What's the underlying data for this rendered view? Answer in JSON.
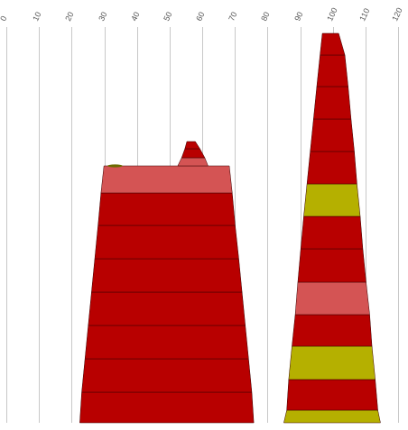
{
  "chart_data": {
    "type": "bar",
    "orientation": "stacked-trapezoid-towers",
    "title": "",
    "xlabel": "",
    "ylabel": "",
    "xlim": [
      0,
      120
    ],
    "x_ticks": [
      0,
      10,
      20,
      30,
      40,
      50,
      60,
      70,
      80,
      90,
      100,
      110,
      120
    ],
    "x_tick_labels": [
      "0",
      "10",
      "20",
      "30",
      "40",
      "50",
      "60",
      "70",
      "80",
      "90",
      "100",
      "110",
      "120"
    ],
    "grid": true,
    "legend": "none",
    "colors": {
      "dark_red": "#b80000",
      "light_red": "#d45454",
      "olive": "#b5b000",
      "dark_olive": "#6b6b00",
      "outline": "#3a0000",
      "grid": "#c8c8c8"
    },
    "groups": [
      {
        "center": 50,
        "segments": [
          {
            "color": "dark_red",
            "x_left": [
              22.5,
              23.1
            ],
            "x_right": [
              75.8,
              75.2
            ]
          },
          {
            "color": "dark_red",
            "x_left": [
              23.1,
              24.1
            ],
            "x_right": [
              75.2,
              74.2
            ]
          },
          {
            "color": "dark_red",
            "x_left": [
              24.1,
              25.1
            ],
            "x_right": [
              74.2,
              73.2
            ]
          },
          {
            "color": "dark_red",
            "x_left": [
              25.1,
              26.1
            ],
            "x_right": [
              73.2,
              72.2
            ]
          },
          {
            "color": "dark_red",
            "x_left": [
              26.1,
              27.1
            ],
            "x_right": [
              72.2,
              71.2
            ]
          },
          {
            "color": "dark_red",
            "x_left": [
              27.1,
              28.1
            ],
            "x_right": [
              71.2,
              70.1
            ]
          },
          {
            "color": "dark_red",
            "x_left": [
              28.1,
              29.0
            ],
            "x_right": [
              70.1,
              69.2
            ]
          },
          {
            "color": "light_red",
            "x_left": [
              29.0,
              29.9
            ],
            "x_right": [
              69.2,
              68.3
            ]
          },
          {
            "color": "dark_olive",
            "x_left": [
              31.0,
              35.6
            ],
            "x_right": [
              31.0,
              35.6
            ],
            "blip": true
          },
          {
            "color": "light_red",
            "x_left": [
              52.5,
              53.7
            ],
            "x_right": [
              61.8,
              60.8
            ]
          },
          {
            "color": "dark_red",
            "x_left": [
              53.7,
              54.7
            ],
            "x_right": [
              60.8,
              59.3
            ]
          },
          {
            "color": "dark_red",
            "x_left": [
              54.7,
              55.3
            ],
            "x_right": [
              59.3,
              57.9
            ]
          }
        ]
      },
      {
        "center": 100,
        "segments": [
          {
            "color": "olive",
            "x_left": [
              85.0,
              85.9
            ],
            "x_right": [
              114.6,
              113.8
            ]
          },
          {
            "color": "dark_red",
            "x_left": [
              85.9,
              86.5
            ],
            "x_right": [
              113.8,
              113.0
            ]
          },
          {
            "color": "olive",
            "x_left": [
              86.5,
              87.5
            ],
            "x_right": [
              113.0,
              112.0
            ]
          },
          {
            "color": "dark_red",
            "x_left": [
              87.5,
              88.5
            ],
            "x_right": [
              112.0,
              111.3
            ]
          },
          {
            "color": "light_red",
            "x_left": [
              88.5,
              89.3
            ],
            "x_right": [
              111.3,
              110.2
            ]
          },
          {
            "color": "dark_red",
            "x_left": [
              89.3,
              90.2
            ],
            "x_right": [
              110.2,
              109.2
            ]
          },
          {
            "color": "dark_red",
            "x_left": [
              90.2,
              91.1
            ],
            "x_right": [
              109.2,
              108.4
            ]
          },
          {
            "color": "olive",
            "x_left": [
              91.1,
              92.1
            ],
            "x_right": [
              108.4,
              107.4
            ]
          },
          {
            "color": "dark_red",
            "x_left": [
              92.1,
              93.1
            ],
            "x_right": [
              107.4,
              106.6
            ]
          },
          {
            "color": "dark_red",
            "x_left": [
              93.1,
              94.1
            ],
            "x_right": [
              106.6,
              105.6
            ]
          },
          {
            "color": "dark_red",
            "x_left": [
              94.1,
              95.1
            ],
            "x_right": [
              105.6,
              104.7
            ]
          },
          {
            "color": "dark_red",
            "x_left": [
              95.1,
              96.1
            ],
            "x_right": [
              104.7,
              103.7
            ]
          },
          {
            "color": "dark_red",
            "x_left": [
              96.1,
              96.8
            ],
            "x_right": [
              103.7,
              101.8
            ]
          }
        ]
      }
    ]
  }
}
